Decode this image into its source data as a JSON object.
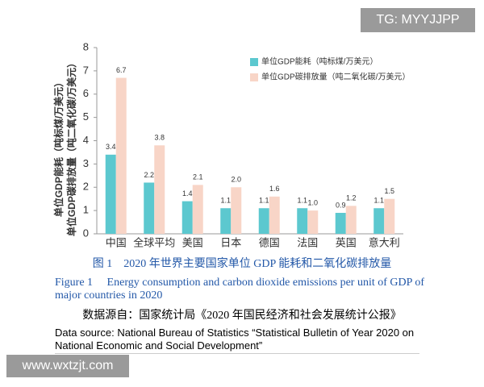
{
  "chart_data": {
    "type": "bar",
    "ylabel": [
      "单位GDP能耗（吨标煤/万美元）",
      "单位GDP碳排放量（吨二氧化碳/万美元）"
    ],
    "categories": [
      "中国",
      "全球平均",
      "美国",
      "日本",
      "德国",
      "法国",
      "英国",
      "意大利"
    ],
    "series": [
      {
        "name": "单位GDP能耗（吨标煤/万美元）",
        "color": "#5cc8cf",
        "values": [
          3.4,
          2.2,
          1.4,
          1.1,
          1.1,
          1.1,
          0.9,
          1.1
        ],
        "value_labels": [
          "3.4",
          "2.2",
          "1.4",
          "1.1",
          "1.1",
          "1.1",
          "0.9",
          "1.1"
        ]
      },
      {
        "name": "单位GDP碳排放量（吨二氧化碳/万美元）",
        "color": "#f8d5c7",
        "values": [
          6.7,
          3.8,
          2.1,
          2.0,
          1.6,
          1.0,
          1.2,
          1.5
        ],
        "value_labels": [
          "6.7",
          "3.8",
          "2.1",
          "2.0",
          "1.6",
          "1.0",
          "1.2",
          "1.5"
        ]
      }
    ],
    "ylim": [
      0,
      8
    ],
    "yticks": [
      0,
      1,
      2,
      3,
      4,
      5,
      6,
      7,
      8
    ],
    "grid": false,
    "legend": "top-right"
  },
  "caption": {
    "zh": "图 1　2020 年世界主要国家单位 GDP 能耗和二氧化碳排放量",
    "en": "Figure 1　 Energy consumption and carbon dioxide emissions per unit of GDP of major countries in 2020"
  },
  "source": {
    "zh": "数据源自：国家统计局《2020 年国民经济和社会发展统计公报》",
    "en": "Data source: National Bureau of Statistics “Statistical Bulletin of Year 2020 on National Economic and Social Development”"
  },
  "watermarks": [
    "TG: MYYJJPP",
    "www.wxtzjt.com"
  ]
}
